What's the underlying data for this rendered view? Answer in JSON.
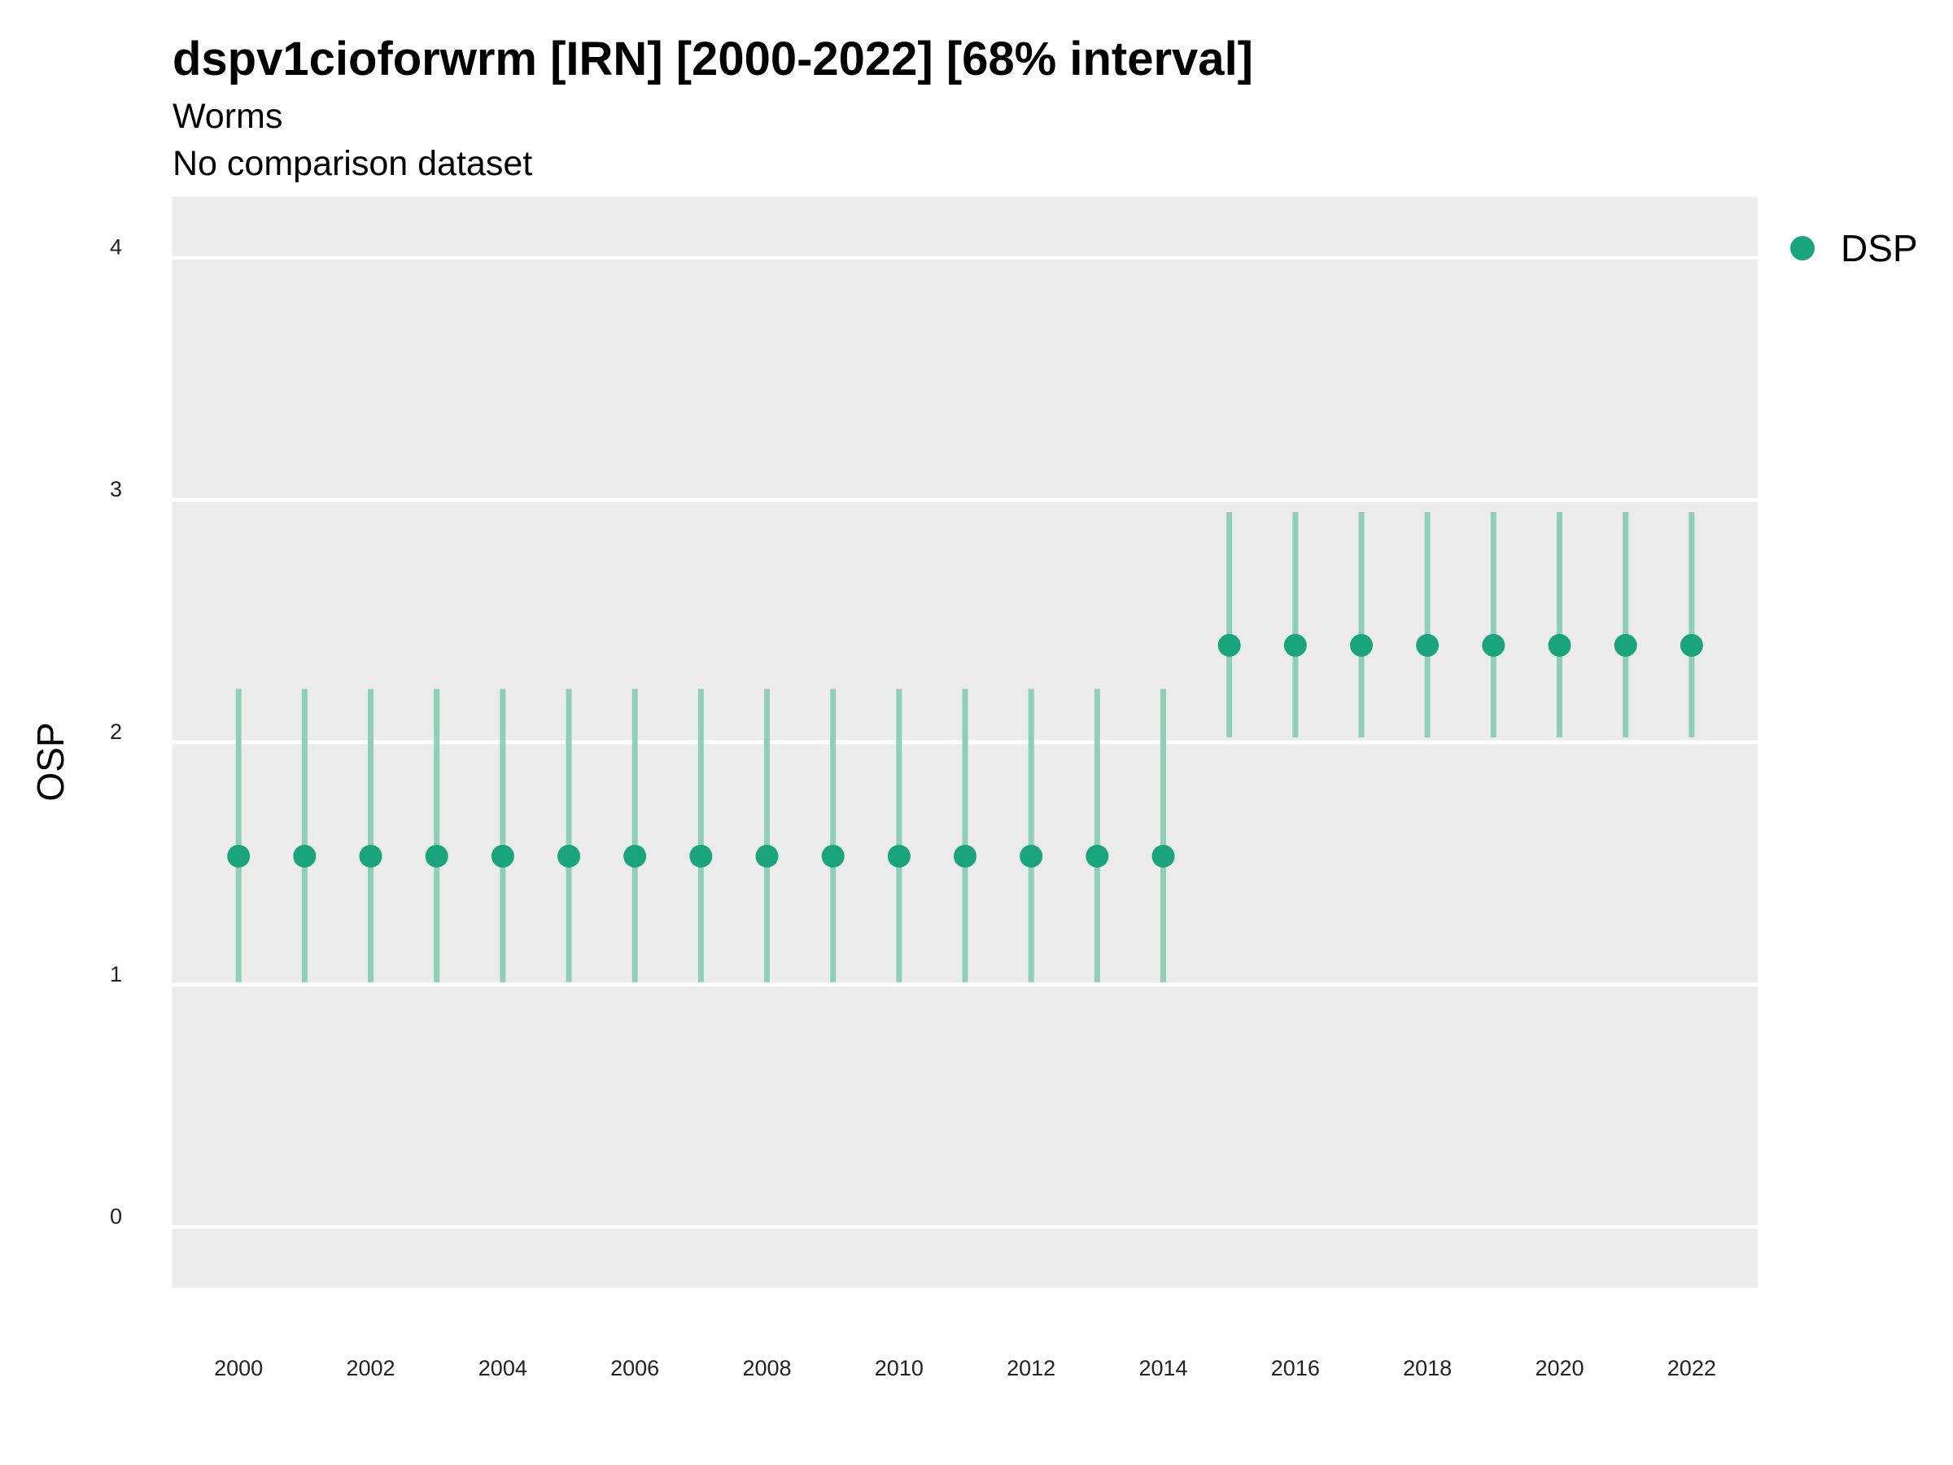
{
  "chart_data": {
    "type": "scatter",
    "title": "dspv1cioforwrm [IRN] [2000-2022] [68% interval]",
    "subtitle": "Worms",
    "subtitle2": "No comparison dataset",
    "xlabel": "",
    "ylabel": "OSP",
    "xlim": [
      1999,
      2023
    ],
    "ylim": [
      -0.25,
      4.25
    ],
    "x_ticks": [
      "2000",
      "2002",
      "2004",
      "2006",
      "2008",
      "2010",
      "2012",
      "2014",
      "2016",
      "2018",
      "2020",
      "2022"
    ],
    "y_ticks": [
      "0",
      "1",
      "2",
      "3",
      "4"
    ],
    "grid": true,
    "legend": {
      "placement": "top-right",
      "entries": [
        "DSP"
      ]
    },
    "colors": {
      "point": "#1aa47c",
      "interval": "#8fcfb8",
      "panel": "#ebebeb",
      "grid": "#ffffff"
    },
    "series": [
      {
        "name": "DSP",
        "x": [
          2000,
          2001,
          2002,
          2003,
          2004,
          2005,
          2006,
          2007,
          2008,
          2009,
          2010,
          2011,
          2012,
          2013,
          2014,
          2015,
          2016,
          2017,
          2018,
          2019,
          2020,
          2021,
          2022
        ],
        "y": [
          1.53,
          1.53,
          1.53,
          1.53,
          1.53,
          1.53,
          1.53,
          1.53,
          1.53,
          1.53,
          1.53,
          1.53,
          1.53,
          1.53,
          1.53,
          2.4,
          2.4,
          2.4,
          2.4,
          2.4,
          2.4,
          2.4,
          2.4
        ],
        "lower": [
          1.01,
          1.01,
          1.01,
          1.01,
          1.01,
          1.01,
          1.01,
          1.01,
          1.01,
          1.01,
          1.01,
          1.01,
          1.01,
          1.01,
          1.01,
          2.02,
          2.02,
          2.02,
          2.02,
          2.02,
          2.02,
          2.02,
          2.02
        ],
        "upper": [
          2.22,
          2.22,
          2.22,
          2.22,
          2.22,
          2.22,
          2.22,
          2.22,
          2.22,
          2.22,
          2.22,
          2.22,
          2.22,
          2.22,
          2.22,
          2.95,
          2.95,
          2.95,
          2.95,
          2.95,
          2.95,
          2.95,
          2.95
        ]
      }
    ]
  }
}
